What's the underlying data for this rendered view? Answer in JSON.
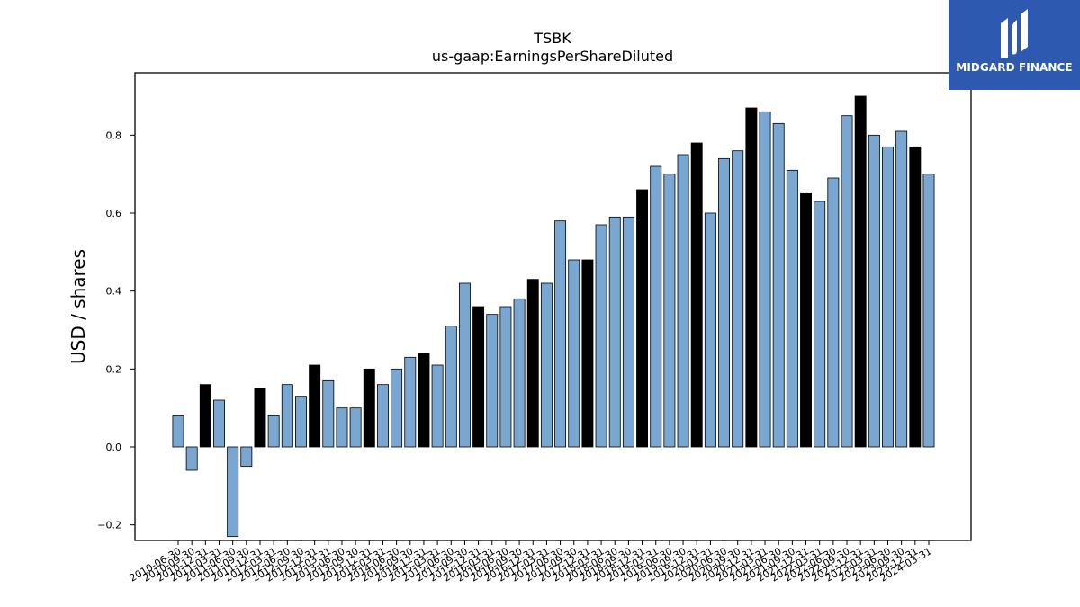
{
  "chart_data": {
    "type": "bar",
    "title": "TSBK",
    "subtitle": "us-gaap:EarningsPerShareDiluted",
    "xlabel": "",
    "ylabel": "USD / shares",
    "ylim": [
      -0.24,
      0.96
    ],
    "yticks": [
      -0.2,
      0.0,
      0.2,
      0.4,
      0.6,
      0.8
    ],
    "ytick_labels": [
      "−0.2",
      "0.0",
      "0.2",
      "0.4",
      "0.6",
      "0.8"
    ],
    "grid": false,
    "colors": {
      "quarter": "#7aa6d2",
      "fiscal_year": "#000000",
      "edge": "#000000"
    },
    "categories": [
      "2010-06-30",
      "2010-09-30",
      "2010-12-31",
      "2011-03-31",
      "2011-06-30",
      "2011-09-30",
      "2011-12-31",
      "2012-03-31",
      "2012-06-30",
      "2012-09-30",
      "2012-12-31",
      "2013-03-31",
      "2013-06-30",
      "2013-09-30",
      "2013-12-31",
      "2014-03-31",
      "2014-06-30",
      "2014-09-30",
      "2014-12-31",
      "2015-03-31",
      "2015-06-30",
      "2015-09-30",
      "2015-12-31",
      "2016-03-31",
      "2016-06-30",
      "2016-09-30",
      "2016-12-31",
      "2017-03-31",
      "2017-06-30",
      "2017-09-30",
      "2017-12-31",
      "2018-03-31",
      "2018-06-30",
      "2018-09-30",
      "2018-12-31",
      "2019-03-31",
      "2019-06-30",
      "2019-09-30",
      "2019-12-31",
      "2020-03-31",
      "2020-06-30",
      "2020-09-30",
      "2020-12-31",
      "2021-03-31",
      "2021-06-30",
      "2021-09-30",
      "2021-12-31",
      "2022-03-31",
      "2022-06-30",
      "2022-09-30",
      "2022-12-31",
      "2023-03-31",
      "2023-06-30",
      "2023-09-30",
      "2023-12-31",
      "2024-03-31"
    ],
    "values": [
      0.08,
      -0.06,
      0.16,
      0.12,
      -0.23,
      -0.05,
      0.15,
      0.08,
      0.16,
      0.13,
      0.21,
      0.17,
      0.1,
      0.1,
      0.2,
      0.16,
      0.2,
      0.23,
      0.24,
      0.21,
      0.31,
      0.42,
      0.36,
      0.34,
      0.36,
      0.38,
      0.43,
      0.42,
      0.58,
      0.48,
      0.48,
      0.57,
      0.59,
      0.59,
      0.66,
      0.72,
      0.7,
      0.75,
      0.78,
      0.6,
      0.74,
      0.76,
      0.87,
      0.86,
      0.83,
      0.71,
      0.65,
      0.63,
      0.69,
      0.85,
      0.9,
      0.8,
      0.77,
      0.81,
      0.77,
      0.7
    ],
    "fiscal_year_flags": [
      0,
      0,
      1,
      0,
      0,
      0,
      1,
      0,
      0,
      0,
      1,
      0,
      0,
      0,
      1,
      0,
      0,
      0,
      1,
      0,
      0,
      0,
      1,
      0,
      0,
      0,
      1,
      0,
      0,
      0,
      1,
      0,
      0,
      0,
      1,
      0,
      0,
      0,
      1,
      0,
      0,
      0,
      1,
      0,
      0,
      0,
      1,
      0,
      0,
      0,
      1,
      0,
      0,
      0,
      1,
      0
    ]
  },
  "logo": {
    "text": "MIDGARD FINANCE",
    "icon": "midgard-finance-logo-mark",
    "background": "#2d5ab0"
  }
}
